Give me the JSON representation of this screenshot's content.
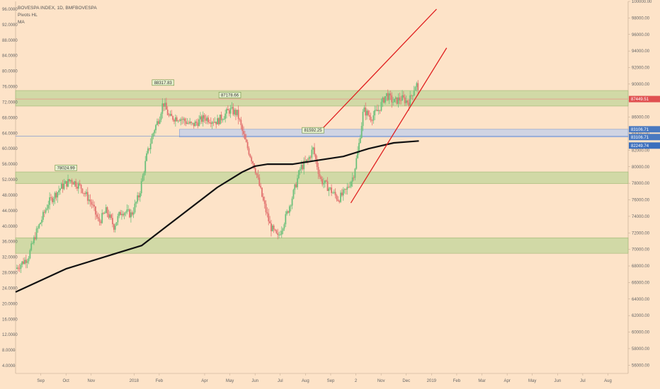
{
  "header": {
    "symbol_line": "BOVESPA INDEX, 1D, BMFBOVESPA",
    "indicators": [
      "Pivots HL",
      "MA"
    ]
  },
  "chart_data": {
    "type": "candlestick",
    "left_axis": {
      "range": [
        2,
        98
      ],
      "ticks": [
        96,
        92,
        88,
        84,
        80,
        76,
        72,
        68,
        64,
        60,
        56,
        52,
        48,
        44,
        40,
        36,
        32,
        28,
        24,
        20,
        16,
        12,
        8,
        4
      ],
      "tick_labels": [
        "96.0000",
        "92.0000",
        "88.0000",
        "84.0000",
        "80.0000",
        "76.0000",
        "72.0000",
        "68.0000",
        "64.0000",
        "60.0000",
        "56.0000",
        "52.0000",
        "48.0000",
        "44.0000",
        "40.0000",
        "36.0000",
        "32.0000",
        "28.0000",
        "24.0000",
        "20.0000",
        "16.0000",
        "12.0000",
        "8.0000",
        "4.0000"
      ]
    },
    "right_axis": {
      "range": [
        55000,
        100000
      ],
      "ticks": [
        100000,
        98000,
        96000,
        94000,
        92000,
        90000,
        88000,
        86000,
        84000,
        82000,
        80000,
        78000,
        76000,
        74000,
        72000,
        70000,
        68000,
        66000,
        64000,
        62000,
        60000,
        58000,
        56000
      ],
      "tick_labels": [
        "100000.00",
        "98000.00",
        "96000.00",
        "94000.00",
        "92000.00",
        "90000.00",
        "88000.00",
        "86000.00",
        "84000.00",
        "82000.00",
        "80000.00",
        "78000.00",
        "76000.00",
        "74000.00",
        "72000.00",
        "70000.00",
        "68000.00",
        "66000.00",
        "64000.00",
        "62000.00",
        "60000.00",
        "58000.00",
        "56000.00"
      ]
    },
    "x_axis": {
      "months": [
        "Sep",
        "Oct",
        "Nov",
        "2018",
        "Feb",
        "Apr",
        "May",
        "Jun",
        "Jul",
        "Aug",
        "Sep",
        "2",
        "Nov",
        "Dec",
        "2019",
        "Feb",
        "Mar",
        "Apr",
        "May",
        "Jun",
        "Jul",
        "Aug"
      ],
      "month_index": [
        1.0,
        2.0,
        3.0,
        4.7,
        5.7,
        7.5,
        8.5,
        9.5,
        10.5,
        11.5,
        12.5,
        13.5,
        14.5,
        15.5,
        16.5,
        17.5,
        18.5,
        19.5,
        20.5,
        21.5,
        22.5,
        23.5
      ],
      "start_index": 0.0,
      "end_index": 24.3,
      "last_bar_index": 16.0
    },
    "price_path": [
      [
        0.0,
        29
      ],
      [
        0.5,
        32
      ],
      [
        0.8,
        38
      ],
      [
        1.3,
        46
      ],
      [
        1.8,
        50
      ],
      [
        2.0,
        51
      ],
      [
        2.2,
        52
      ],
      [
        2.6,
        50
      ],
      [
        3.0,
        46
      ],
      [
        3.3,
        41
      ],
      [
        3.6,
        44
      ],
      [
        3.9,
        40
      ],
      [
        4.2,
        44
      ],
      [
        4.6,
        43
      ],
      [
        4.9,
        48
      ],
      [
        5.2,
        58
      ],
      [
        5.5,
        65
      ],
      [
        5.7,
        68
      ],
      [
        5.85,
        72
      ],
      [
        6.1,
        68
      ],
      [
        6.5,
        68
      ],
      [
        7.0,
        66
      ],
      [
        7.5,
        68
      ],
      [
        8.0,
        67
      ],
      [
        8.5,
        70
      ],
      [
        8.8,
        69
      ],
      [
        9.1,
        62
      ],
      [
        9.5,
        55
      ],
      [
        9.8,
        47
      ],
      [
        10.1,
        40
      ],
      [
        10.4,
        37
      ],
      [
        10.7,
        42
      ],
      [
        11.0,
        48
      ],
      [
        11.3,
        55
      ],
      [
        11.6,
        57
      ],
      [
        11.8,
        60
      ],
      [
        12.1,
        52
      ],
      [
        12.4,
        50
      ],
      [
        12.8,
        47
      ],
      [
        13.1,
        49
      ],
      [
        13.4,
        53
      ],
      [
        13.6,
        60
      ],
      [
        13.8,
        70
      ],
      [
        14.1,
        68
      ],
      [
        14.4,
        70
      ],
      [
        14.7,
        74
      ],
      [
        15.0,
        72
      ],
      [
        15.3,
        73
      ],
      [
        15.6,
        72
      ],
      [
        15.9,
        77
      ],
      [
        16.0,
        73
      ]
    ],
    "moving_average": [
      [
        0.0,
        23
      ],
      [
        1.0,
        26
      ],
      [
        2.0,
        29
      ],
      [
        3.0,
        31
      ],
      [
        4.0,
        33
      ],
      [
        5.0,
        35
      ],
      [
        6.0,
        40
      ],
      [
        7.0,
        45
      ],
      [
        8.0,
        50
      ],
      [
        9.0,
        54
      ],
      [
        9.5,
        55.5
      ],
      [
        10.0,
        56
      ],
      [
        11.0,
        56
      ],
      [
        12.0,
        57
      ],
      [
        13.0,
        58
      ],
      [
        14.0,
        60
      ],
      [
        15.0,
        61.5
      ],
      [
        16.0,
        62
      ]
    ],
    "zones": [
      {
        "index_range": [
          0.0,
          24.3
        ],
        "price_range": [
          71.0,
          75.0
        ],
        "type": "supply-demand",
        "color": "#c9d7a0"
      },
      {
        "index_range": [
          6.5,
          24.3
        ],
        "price_range": [
          63.0,
          65.0
        ],
        "type": "range",
        "color": "#c8d1e8"
      },
      {
        "index_range": [
          0.0,
          24.3
        ],
        "price_range": [
          51.0,
          54.0
        ],
        "type": "supply-demand",
        "color": "#c9d7a0"
      },
      {
        "index_range": [
          0.0,
          24.3
        ],
        "price_range": [
          33.0,
          37.0
        ],
        "type": "supply-demand",
        "color": "#c9d7a0"
      }
    ],
    "trendlines": [
      {
        "from": [
          12.0,
          64
        ],
        "to": [
          16.7,
          96
        ],
        "color": "#e02020"
      },
      {
        "from": [
          13.3,
          46
        ],
        "to": [
          17.1,
          86
        ],
        "color": "#e02020"
      }
    ],
    "horizontal_lines": [
      {
        "price": 72.8,
        "color": "#f08080"
      },
      {
        "price": 63.2,
        "color": "#6a8fd0"
      }
    ],
    "pivot_labels": [
      {
        "text": "88317.83",
        "index": 5.85,
        "price": 76.5
      },
      {
        "text": "87178.66",
        "index": 8.5,
        "price": 73.3
      },
      {
        "text": "78024.99",
        "index": 2.0,
        "price": 54.5
      },
      {
        "text": "81592.25",
        "index": 11.8,
        "price": 64.2
      }
    ],
    "price_badges": [
      {
        "text": "87449.51",
        "price": 72.8,
        "color": "#e05050"
      },
      {
        "text": "83106.71",
        "price": 65.0,
        "color": "#4a79c0"
      },
      {
        "text": "83106.71",
        "price": 63.0,
        "color": "#4a79c0"
      },
      {
        "text": "82249.74",
        "price": 60.8,
        "color": "#3c6fbd"
      }
    ],
    "colors": {
      "background": "#fde3c8",
      "bull": "#6cc07a",
      "bear": "#e2726f",
      "ma": "#111111",
      "grid": "#f3d2b4"
    }
  }
}
